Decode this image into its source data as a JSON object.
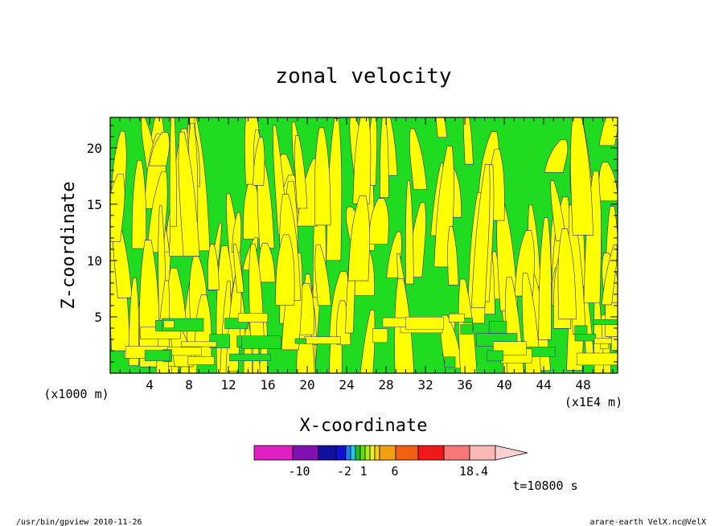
{
  "chart_data": {
    "type": "heatmap",
    "title": "zonal velocity",
    "xlabel": "X-coordinate",
    "ylabel": "Z-coordinate",
    "x_units": "(x1E4 m)",
    "y_units": "(x1000 m)",
    "xlim": [
      0,
      51.5
    ],
    "ylim": [
      0,
      22.7
    ],
    "x_ticks": [
      4,
      8,
      12,
      16,
      20,
      24,
      28,
      32,
      36,
      40,
      44,
      48
    ],
    "y_ticks": [
      5,
      10,
      15,
      20
    ],
    "colorbar": {
      "labels": [
        "-10",
        "-2",
        "1",
        "6",
        "18.4"
      ],
      "label_values": [
        -10,
        -2,
        1,
        6,
        18.4
      ],
      "colors": [
        "#e020c0",
        "#8010b0",
        "#1010a0",
        "#1010d0",
        "#2080f0",
        "#20c8f0",
        "#20c020",
        "#60e010",
        "#b0f010",
        "#f0f020",
        "#f8d010",
        "#f0a010",
        "#f06010",
        "#f01818",
        "#f87878",
        "#f8b8b8",
        "#f8d0d0"
      ]
    },
    "dominant_colors": {
      "low": "#20dc20",
      "high": "#ffff00"
    },
    "time_label": "t=10800 s"
  },
  "footer": {
    "left": "/usr/bin/gpview  2010-11-26",
    "right": "arare-earth_VelX.nc@VelX"
  }
}
